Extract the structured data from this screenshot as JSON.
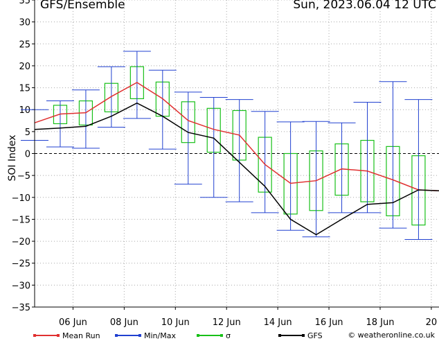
{
  "header": {
    "title": "GFS/Ensemble",
    "datetime": "Sun, 2023.06.04   12 UTC"
  },
  "legend": [
    {
      "label": "Mean Run",
      "color": "#e03030"
    },
    {
      "label": "Min/Max",
      "color": "#2040d0"
    },
    {
      "label": "σ",
      "color": "#18c018"
    },
    {
      "label": "GFS",
      "color": "#000000"
    }
  ],
  "copyright": "© weatheronline.co.uk",
  "chart_data": {
    "type": "line",
    "title": "GFS/Ensemble",
    "xlabel": "",
    "ylabel": "SOI Index",
    "ylim": [
      -35,
      35
    ],
    "yticks": [
      35,
      30,
      25,
      20,
      15,
      10,
      5,
      0,
      -5,
      -10,
      -15,
      -20,
      -25,
      -30,
      -35
    ],
    "xlim": [
      4.5,
      20.3
    ],
    "xticks": [
      {
        "x": 6,
        "label": "06 Jun"
      },
      {
        "x": 8,
        "label": "08 Jun"
      },
      {
        "x": 10,
        "label": "10 Jun"
      },
      {
        "x": 12,
        "label": "12 Jun"
      },
      {
        "x": 14,
        "label": "14 Jun"
      },
      {
        "x": 16,
        "label": "16 Jun"
      },
      {
        "x": 18,
        "label": "18 Jun"
      },
      {
        "x": 20,
        "label": "20"
      }
    ],
    "grid": true,
    "legend_position": "bottom",
    "series": [
      {
        "name": "Mean Run",
        "color": "#e03030",
        "points": [
          [
            4.5,
            7.0
          ],
          [
            5.5,
            9.0
          ],
          [
            6.5,
            9.3
          ],
          [
            7.5,
            13.0
          ],
          [
            8.5,
            16.2
          ],
          [
            9.5,
            12.5
          ],
          [
            10.5,
            7.5
          ],
          [
            11.5,
            5.5
          ],
          [
            12.5,
            4.2
          ],
          [
            13.5,
            -2.5
          ],
          [
            14.5,
            -6.8
          ],
          [
            15.5,
            -6.2
          ],
          [
            16.5,
            -3.5
          ],
          [
            17.5,
            -4.0
          ],
          [
            18.5,
            -6.0
          ],
          [
            19.5,
            -8.3
          ],
          [
            20.3,
            -8.5
          ]
        ]
      },
      {
        "name": "GFS",
        "color": "#000000",
        "points": [
          [
            4.5,
            5.5
          ],
          [
            5.5,
            5.8
          ],
          [
            6.5,
            6.2
          ],
          [
            7.5,
            8.5
          ],
          [
            8.5,
            11.5
          ],
          [
            9.5,
            8.5
          ],
          [
            10.5,
            4.8
          ],
          [
            11.5,
            3.5
          ],
          [
            12.5,
            -2.0
          ],
          [
            13.5,
            -7.5
          ],
          [
            14.5,
            -15.0
          ],
          [
            15.5,
            -18.5
          ],
          [
            16.5,
            -15.0
          ],
          [
            17.5,
            -11.6
          ],
          [
            18.5,
            -11.2
          ],
          [
            19.5,
            -8.3
          ],
          [
            20.3,
            -8.5
          ]
        ]
      },
      {
        "name": "Min/Max",
        "color": "#2040d0",
        "bars": [
          {
            "x": 4.5,
            "min": 3.0,
            "max": 10.0
          },
          {
            "x": 5.5,
            "min": 1.5,
            "max": 12.0
          },
          {
            "x": 6.5,
            "min": 1.2,
            "max": 14.5
          },
          {
            "x": 7.5,
            "min": 6.0,
            "max": 19.8
          },
          {
            "x": 8.5,
            "min": 8.0,
            "max": 23.3
          },
          {
            "x": 9.5,
            "min": 1.0,
            "max": 19.0
          },
          {
            "x": 10.5,
            "min": -7.0,
            "max": 14.0
          },
          {
            "x": 11.5,
            "min": -10.0,
            "max": 12.8
          },
          {
            "x": 12.5,
            "min": -11.0,
            "max": 12.3
          },
          {
            "x": 13.5,
            "min": -13.5,
            "max": 9.6
          },
          {
            "x": 14.5,
            "min": -17.5,
            "max": 7.2
          },
          {
            "x": 15.5,
            "min": -19.0,
            "max": 7.3
          },
          {
            "x": 16.5,
            "min": -13.5,
            "max": 7.0
          },
          {
            "x": 17.5,
            "min": -13.5,
            "max": 11.7
          },
          {
            "x": 18.5,
            "min": -17.0,
            "max": 16.4
          },
          {
            "x": 19.5,
            "min": -19.6,
            "max": 12.3
          }
        ]
      },
      {
        "name": "σ",
        "color": "#18c018",
        "boxes": [
          {
            "x": 5.5,
            "low": 6.8,
            "high": 11.0
          },
          {
            "x": 6.5,
            "low": 6.5,
            "high": 12.0
          },
          {
            "x": 7.5,
            "low": 9.5,
            "high": 16.0
          },
          {
            "x": 8.5,
            "low": 12.5,
            "high": 19.8
          },
          {
            "x": 9.5,
            "low": 8.5,
            "high": 16.3
          },
          {
            "x": 10.5,
            "low": 2.5,
            "high": 11.8
          },
          {
            "x": 11.5,
            "low": 0.3,
            "high": 10.3
          },
          {
            "x": 12.5,
            "low": -1.5,
            "high": 9.8
          },
          {
            "x": 13.5,
            "low": -8.8,
            "high": 3.7
          },
          {
            "x": 14.5,
            "low": -13.8,
            "high": 0.0
          },
          {
            "x": 15.5,
            "low": -13.0,
            "high": 0.6
          },
          {
            "x": 16.5,
            "low": -9.5,
            "high": 2.2
          },
          {
            "x": 17.5,
            "low": -11.0,
            "high": 3.0
          },
          {
            "x": 18.5,
            "low": -14.2,
            "high": 1.6
          },
          {
            "x": 19.5,
            "low": -16.3,
            "high": -0.5
          }
        ]
      }
    ]
  }
}
